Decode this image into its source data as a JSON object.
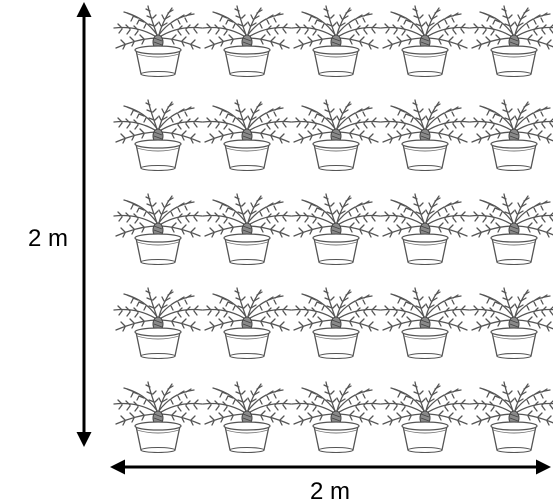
{
  "diagram": {
    "vertical_dimension_label": "2 m",
    "horizontal_dimension_label": "2 m",
    "grid": {
      "rows": 5,
      "columns": 5,
      "item": "potted-plant-icon"
    },
    "colors": {
      "arrow": "#000000",
      "plant_outline": "#555555",
      "pot_fill": "#ffffff"
    }
  }
}
